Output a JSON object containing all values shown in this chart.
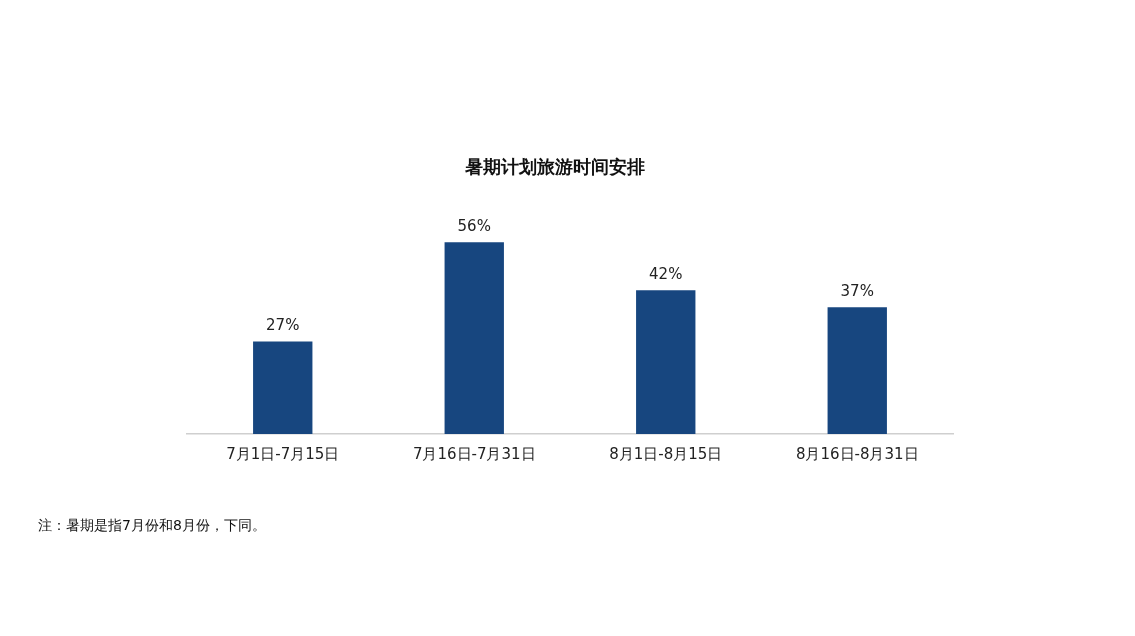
{
  "chart_data": {
    "type": "bar",
    "title": "暑期计划旅游时间安排",
    "categories": [
      "7月1日-7月15日",
      "7月16日-7月31日",
      "8月1日-8月15日",
      "8月16日-8月31日"
    ],
    "values": [
      27,
      56,
      42,
      37
    ],
    "color": "#17467f",
    "value_labels": [
      "27%",
      "56%",
      "42%",
      "37%"
    ],
    "grid": false,
    "legend": false,
    "annotations": [
      "注：暑期是指7月份和8月份，下同。"
    ]
  }
}
